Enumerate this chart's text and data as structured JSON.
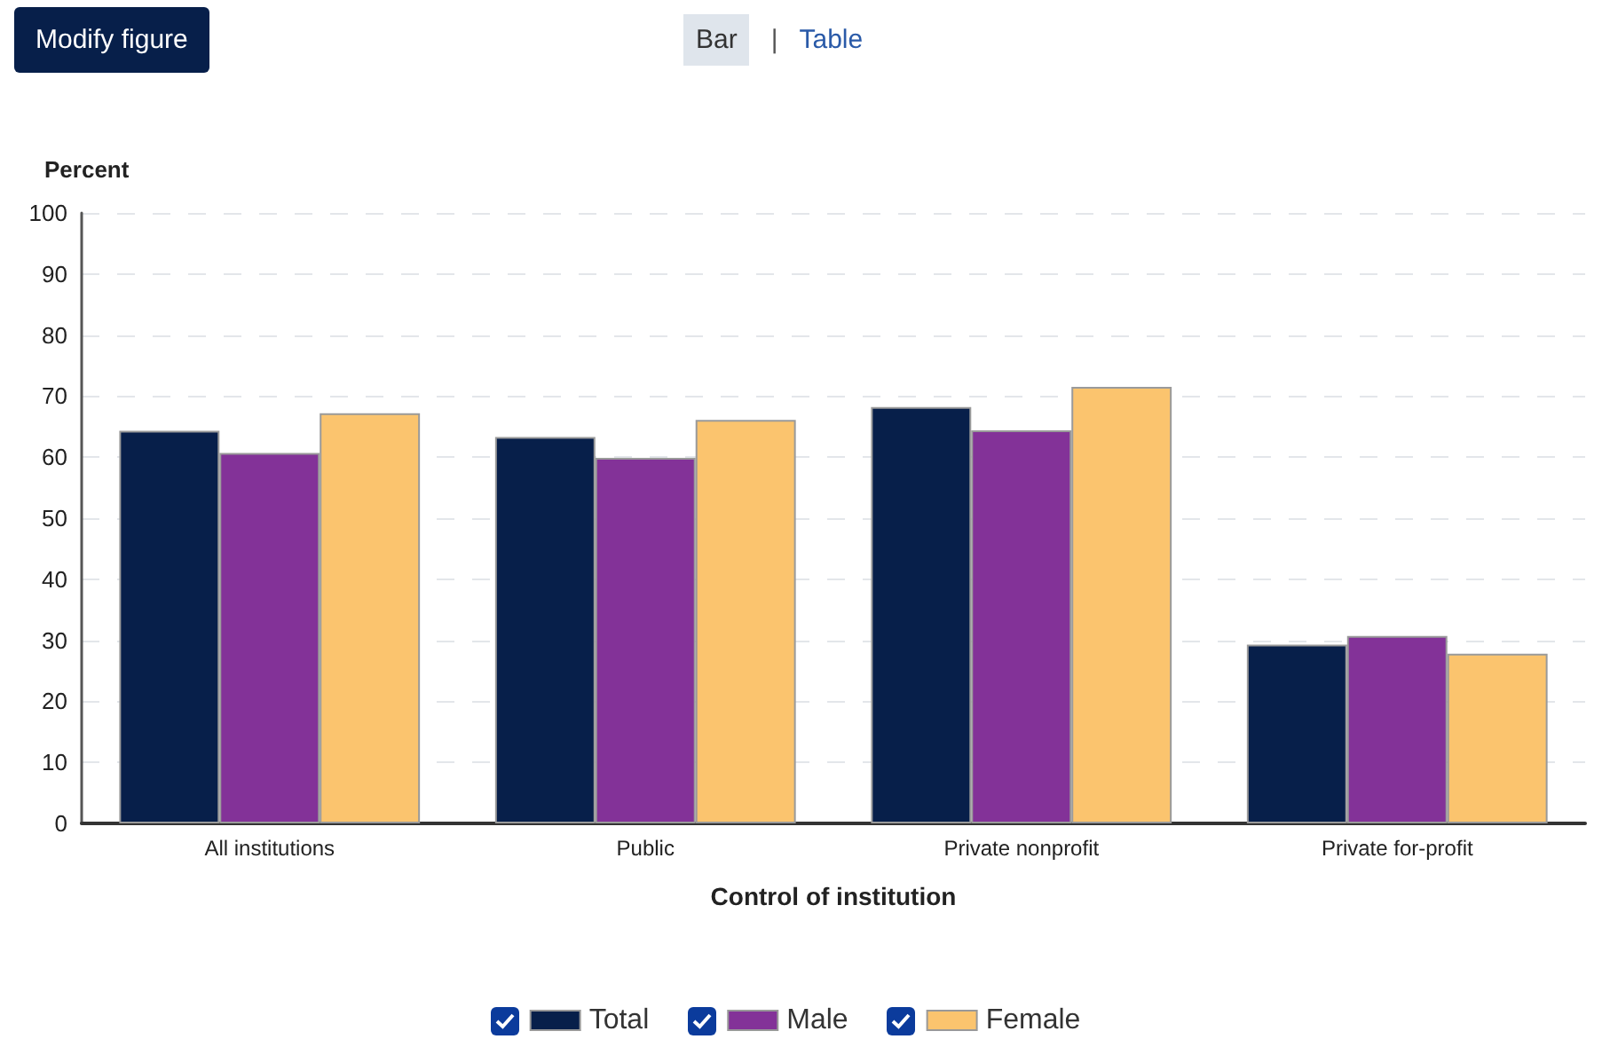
{
  "chart_data": {
    "type": "bar",
    "xlabel": "Control of institution",
    "ylabel": "Percent",
    "annotations": [
      "Modify figure",
      "Bar",
      "|",
      "Table"
    ],
    "categories": [
      "All institutions",
      "Public",
      "Private nonprofit",
      "Private for-profit"
    ],
    "series": [
      {
        "name": "Total",
        "color": "#071f4a",
        "values": [
          64.3,
          63.3,
          68.2,
          29.3
        ]
      },
      {
        "name": "Male",
        "color": "#833298",
        "values": [
          60.7,
          59.9,
          64.4,
          30.7
        ]
      },
      {
        "name": "Female",
        "color": "#fbc46e",
        "values": [
          67.2,
          66.1,
          71.5,
          27.8
        ]
      }
    ],
    "ylim": [
      0,
      100
    ],
    "yticks": [
      0,
      10,
      20,
      30,
      40,
      50,
      60,
      70,
      80,
      90,
      100
    ],
    "grid": "y",
    "legend": "bottom"
  }
}
